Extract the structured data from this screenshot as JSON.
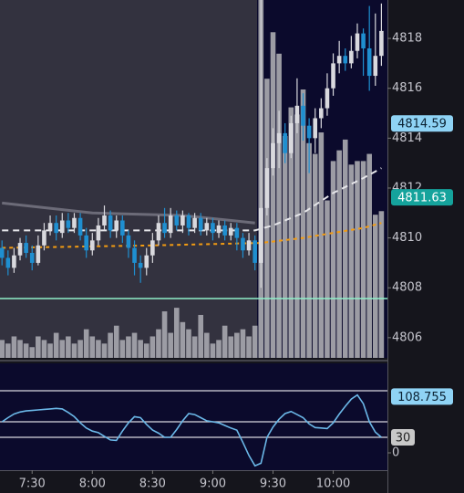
{
  "chart_data": [
    {
      "type": "candlestick",
      "x": [
        "7:15",
        "7:18",
        "7:21",
        "7:24",
        "7:27",
        "7:30",
        "7:33",
        "7:36",
        "7:39",
        "7:42",
        "7:45",
        "7:48",
        "7:51",
        "7:54",
        "7:57",
        "8:00",
        "8:03",
        "8:06",
        "8:09",
        "8:12",
        "8:15",
        "8:18",
        "8:21",
        "8:24",
        "8:27",
        "8:30",
        "8:33",
        "8:36",
        "8:39",
        "8:42",
        "8:45",
        "8:48",
        "8:51",
        "8:54",
        "8:57",
        "9:00",
        "9:03",
        "9:06",
        "9:09",
        "9:12",
        "9:15",
        "9:18",
        "9:21",
        "9:24",
        "9:27",
        "9:30",
        "9:33",
        "9:36",
        "9:39",
        "9:42",
        "9:45",
        "9:48",
        "9:51",
        "9:54",
        "9:57",
        "10:00",
        "10:03",
        "10:06",
        "10:09",
        "10:12",
        "10:15",
        "10:18",
        "10:21",
        "10:24"
      ],
      "open": [
        4809.6,
        4809.2,
        4808.8,
        4809.3,
        4809.8,
        4809.4,
        4809.0,
        4809.7,
        4810.3,
        4810.6,
        4810.2,
        4810.7,
        4810.4,
        4810.8,
        4810.1,
        4809.5,
        4809.9,
        4810.5,
        4810.9,
        4810.3,
        4810.7,
        4810.1,
        4809.6,
        4809.0,
        4808.8,
        4809.3,
        4809.9,
        4810.6,
        4810.2,
        4810.9,
        4810.5,
        4810.9,
        4810.4,
        4810.8,
        4810.3,
        4810.6,
        4810.2,
        4810.5,
        4810.1,
        4810.4,
        4810.0,
        4809.5,
        4809.9,
        4809.0,
        4811.2,
        4812.8,
        4813.8,
        4814.2,
        4813.4,
        4814.6,
        4815.3,
        4814.5,
        4814.0,
        4814.8,
        4815.2,
        4816.0,
        4817.0,
        4817.3,
        4817.0,
        4817.5,
        4818.2,
        4817.6,
        4816.5,
        4817.3
      ],
      "high": [
        4809.9,
        4809.5,
        4809.6,
        4810.0,
        4810.1,
        4809.7,
        4810.1,
        4810.6,
        4810.9,
        4810.9,
        4811.0,
        4811.0,
        4811.0,
        4811.0,
        4810.4,
        4810.2,
        4810.8,
        4811.3,
        4811.1,
        4810.9,
        4810.9,
        4810.3,
        4809.9,
        4809.3,
        4809.6,
        4810.2,
        4810.9,
        4811.2,
        4811.2,
        4811.1,
        4811.1,
        4811.0,
        4811.0,
        4811.0,
        4810.8,
        4810.8,
        4810.7,
        4810.7,
        4810.6,
        4810.6,
        4810.2,
        4810.2,
        4810.1,
        4819.6,
        4813.2,
        4814.4,
        4815.1,
        4814.6,
        4814.9,
        4816.4,
        4815.8,
        4814.8,
        4815.2,
        4815.6,
        4816.6,
        4817.4,
        4817.9,
        4817.6,
        4818.1,
        4818.6,
        4818.4,
        4819.3,
        4819.0,
        4819.4
      ],
      "low": [
        4808.9,
        4808.5,
        4808.6,
        4809.1,
        4809.2,
        4808.7,
        4808.9,
        4809.5,
        4810.1,
        4809.9,
        4810.0,
        4810.2,
        4810.2,
        4809.9,
        4809.2,
        4809.3,
        4809.7,
        4810.3,
        4810.0,
        4810.0,
        4809.8,
        4809.2,
        4808.5,
        4808.2,
        4808.5,
        4809.0,
        4809.7,
        4810.0,
        4810.0,
        4810.3,
        4810.2,
        4810.1,
        4810.2,
        4810.1,
        4810.1,
        4809.9,
        4810.0,
        4809.9,
        4809.9,
        4809.5,
        4809.2,
        4809.3,
        4808.7,
        4808.0,
        4810.9,
        4812.5,
        4812.8,
        4813.0,
        4813.2,
        4814.2,
        4813.9,
        4812.6,
        4813.4,
        4814.4,
        4814.9,
        4815.7,
        4816.6,
        4816.7,
        4816.8,
        4817.2,
        4816.5,
        4815.9,
        4816.1,
        4816.9
      ],
      "close": [
        4809.2,
        4808.8,
        4809.3,
        4809.8,
        4809.4,
        4809.0,
        4809.7,
        4810.3,
        4810.6,
        4810.2,
        4810.7,
        4810.4,
        4810.8,
        4810.1,
        4809.5,
        4809.9,
        4810.5,
        4810.9,
        4810.3,
        4810.7,
        4810.1,
        4809.6,
        4809.0,
        4808.8,
        4809.3,
        4809.9,
        4810.6,
        4810.2,
        4810.9,
        4810.5,
        4810.9,
        4810.4,
        4810.8,
        4810.3,
        4810.6,
        4810.2,
        4810.5,
        4810.1,
        4810.4,
        4810.0,
        4809.5,
        4809.9,
        4809.0,
        4811.2,
        4812.8,
        4813.8,
        4814.2,
        4813.4,
        4814.6,
        4815.3,
        4814.5,
        4814.0,
        4814.8,
        4815.2,
        4816.0,
        4817.0,
        4817.3,
        4817.0,
        4817.5,
        4818.2,
        4817.6,
        4816.5,
        4817.3,
        4818.3
      ],
      "up_color": "#d9d9de",
      "down_color": "#1f8fd0",
      "xlim": [
        "7:14",
        "10:27"
      ],
      "xticks": [
        "7:30",
        "8:00",
        "8:30",
        "9:00",
        "9:30",
        "10:00"
      ],
      "ylim": [
        4805.19,
        4819.54
      ],
      "yticks": [
        4806,
        4808,
        4810,
        4812,
        4814,
        4816,
        4818
      ],
      "volume": {
        "color": "#9c9ca4",
        "ylim": [
          0,
          100
        ],
        "values": [
          5,
          4,
          6,
          5,
          4,
          3,
          6,
          5,
          4,
          7,
          5,
          6,
          4,
          5,
          8,
          6,
          5,
          4,
          7,
          9,
          5,
          6,
          7,
          5,
          4,
          6,
          8,
          13,
          7,
          14,
          10,
          8,
          6,
          12,
          7,
          4,
          5,
          9,
          6,
          7,
          8,
          6,
          9,
          100,
          78,
          91,
          85,
          62,
          70,
          68,
          75,
          60,
          57,
          63,
          44,
          55,
          58,
          61,
          54,
          55,
          55,
          57,
          40,
          41
        ]
      },
      "lines": [
        {
          "color": "#6c6b78",
          "style": "solid",
          "x": [
            "7:15",
            "8:00",
            "8:45",
            "9:21"
          ],
          "values": [
            4811.4,
            4811.0,
            4810.9,
            4810.6
          ]
        },
        {
          "color": "#e6e6ea",
          "style": "dashed",
          "x": [
            "7:15",
            "9:21",
            "9:30",
            "9:45",
            "10:00",
            "10:15",
            "10:24"
          ],
          "values": [
            4810.3,
            4810.3,
            4810.5,
            4811.0,
            4811.8,
            4812.4,
            4812.8
          ]
        },
        {
          "color": "#f39c12",
          "style": "dotted",
          "x": [
            "7:15",
            "8:30",
            "9:24",
            "9:45",
            "10:00",
            "10:15",
            "10:24"
          ],
          "values": [
            4809.6,
            4809.7,
            4809.8,
            4810.0,
            4810.2,
            4810.4,
            4810.6
          ]
        }
      ],
      "hline": {
        "value": 4807.57,
        "color": "#8ff0c8"
      },
      "badges": [
        {
          "value": 4814.59,
          "bg": "#8fd3f5",
          "fg": "#0b2233"
        },
        {
          "value": 4811.63,
          "bg": "#15a39c",
          "fg": "#ffffff"
        }
      ]
    },
    {
      "type": "line",
      "color": "#6bb8e8",
      "values": [
        60,
        68,
        75,
        79,
        81,
        82,
        83,
        84,
        85,
        86,
        85,
        78,
        70,
        58,
        48,
        42,
        39,
        32,
        25,
        24,
        42,
        58,
        70,
        68,
        55,
        44,
        38,
        30,
        30,
        45,
        62,
        76,
        74,
        68,
        62,
        60,
        58,
        53,
        48,
        44,
        20,
        -5,
        -25,
        -20,
        30,
        50,
        65,
        76,
        80,
        74,
        68,
        56,
        49,
        48,
        47,
        58,
        75,
        90,
        104,
        112,
        95,
        60,
        40,
        30
      ],
      "ylim": [
        -33.5,
        173
      ],
      "yticks": [
        0
      ],
      "hlines": [
        120,
        60,
        30
      ],
      "badges": [
        {
          "value": 108.755,
          "bg": "#8fd3f5",
          "fg": "#0b2233"
        },
        {
          "value": 30,
          "bg": "#c8c8c8",
          "fg": "#222222"
        }
      ]
    }
  ]
}
